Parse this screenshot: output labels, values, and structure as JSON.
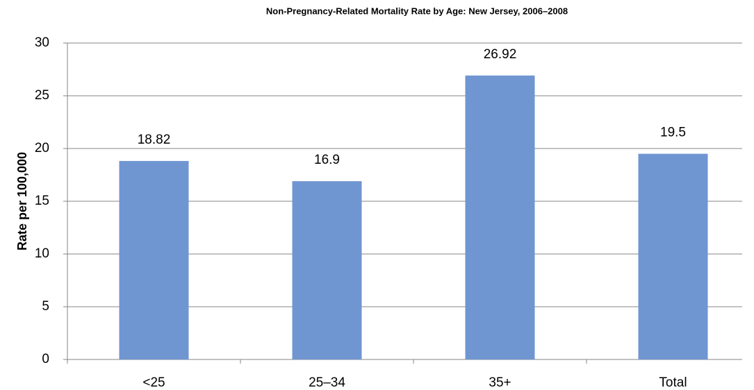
{
  "chart_data": {
    "type": "bar",
    "title": "Non-Pregnancy-Related Mortality Rate by Age: New Jersey, 2006–2008",
    "y_label": "Rate per 100,000",
    "categories": [
      "<25",
      "25–34",
      "35+",
      "Total"
    ],
    "values": [
      18.82,
      16.9,
      26.92,
      19.5
    ],
    "color": "#7096d2",
    "ylim": [
      0,
      30
    ],
    "yticks": [
      0,
      5,
      10,
      15,
      20,
      25,
      30
    ],
    "grid": true
  }
}
